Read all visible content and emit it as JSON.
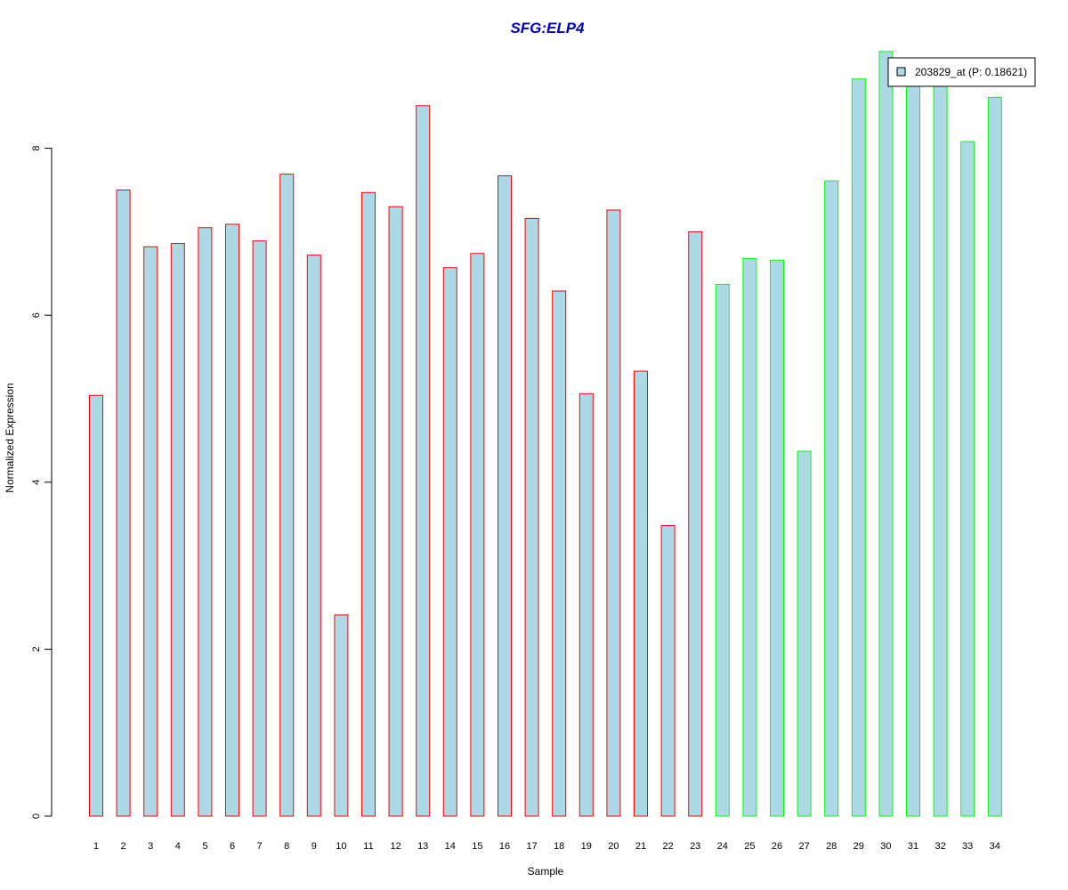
{
  "chart_data": {
    "type": "bar",
    "title": "SFG:ELP4",
    "xlabel": "Sample",
    "ylabel": "Normalized Expression",
    "categories": [
      "1",
      "2",
      "3",
      "4",
      "5",
      "6",
      "7",
      "8",
      "9",
      "10",
      "11",
      "12",
      "13",
      "14",
      "15",
      "16",
      "17",
      "18",
      "19",
      "20",
      "21",
      "22",
      "23",
      "24",
      "25",
      "26",
      "27",
      "28",
      "29",
      "30",
      "31",
      "32",
      "33",
      "34"
    ],
    "values": [
      5.04,
      7.5,
      6.82,
      6.86,
      7.05,
      7.09,
      6.89,
      7.69,
      6.72,
      2.41,
      7.47,
      7.3,
      8.51,
      6.57,
      6.74,
      7.67,
      7.16,
      6.29,
      5.06,
      7.26,
      5.33,
      3.48,
      7.0,
      6.37,
      6.68,
      6.66,
      4.37,
      7.61,
      8.83,
      9.16,
      8.85,
      8.85,
      8.08,
      8.61
    ],
    "groups": [
      "red",
      "red",
      "red",
      "red",
      "red",
      "red",
      "red",
      "red",
      "red",
      "red",
      "red",
      "red",
      "red",
      "red",
      "red",
      "red",
      "red",
      "red",
      "red",
      "red",
      "red",
      "red",
      "red",
      "green",
      "green",
      "green",
      "green",
      "green",
      "green",
      "green",
      "green",
      "green",
      "green",
      "green"
    ],
    "ylim": [
      0,
      9.2
    ],
    "yticks": [
      0,
      2,
      4,
      6,
      8
    ],
    "grid": false,
    "legend": {
      "position": "top-right",
      "entries": [
        {
          "label": "203829_at (P: 0.18621)"
        }
      ]
    },
    "colors": {
      "bar_fill": "#add8e6",
      "border_group1": "#ff0000",
      "border_group2": "#00ff00",
      "title": "#0000cd",
      "axis": "#000000"
    }
  }
}
